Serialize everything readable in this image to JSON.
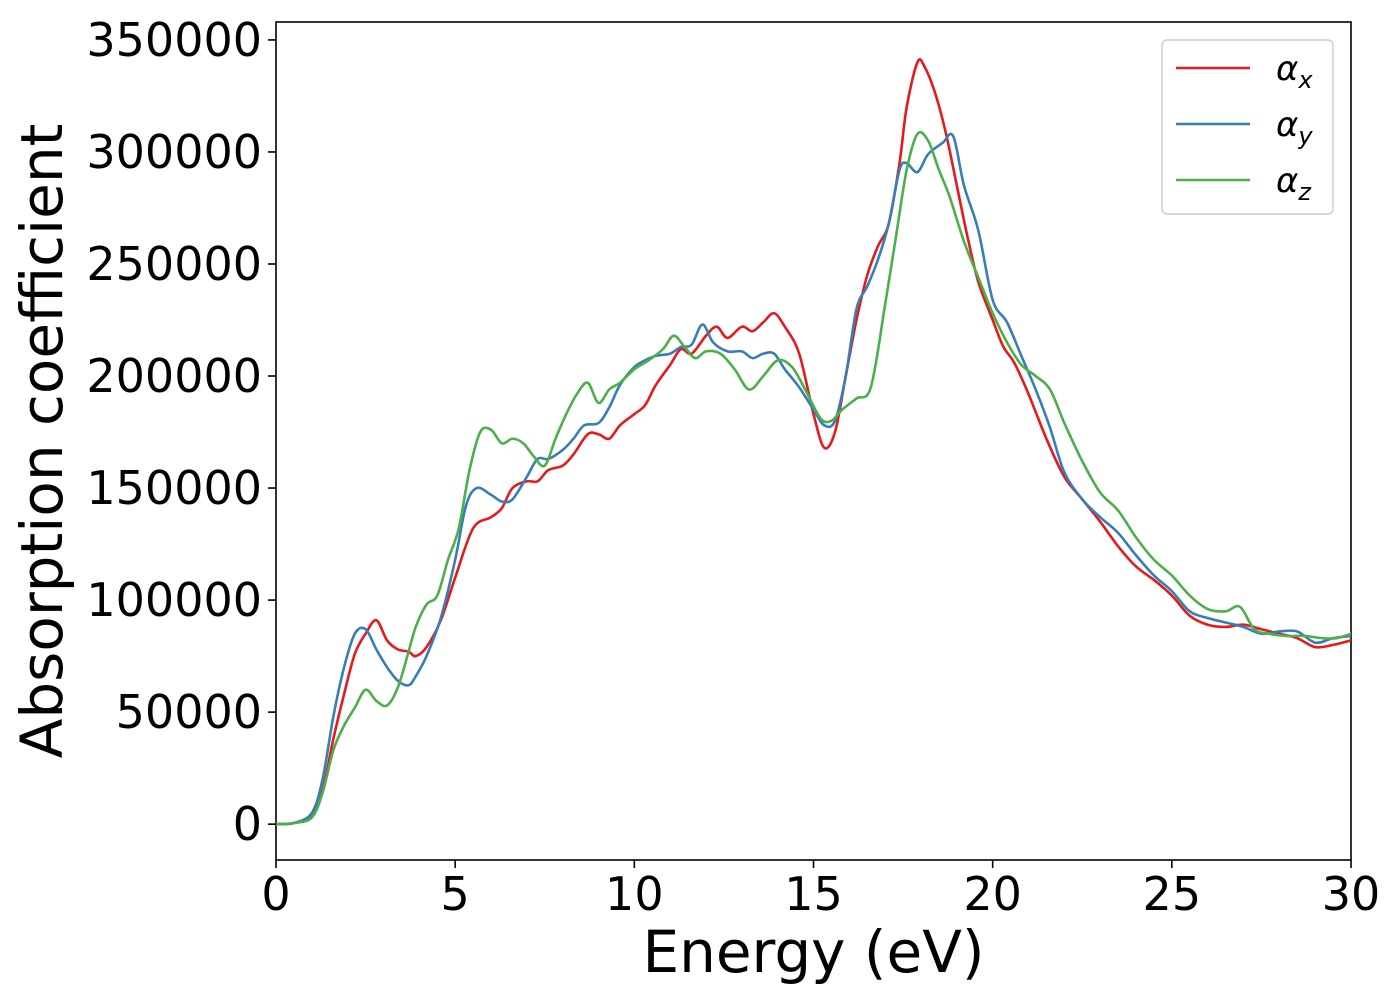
{
  "chart_data": {
    "type": "line",
    "xlabel": "Energy (eV)",
    "ylabel": "Absorption coefficient",
    "xlim": [
      0,
      30
    ],
    "ylim": [
      -16000,
      358000
    ],
    "xticks": [
      0,
      5,
      10,
      15,
      20,
      25,
      30
    ],
    "yticks": [
      0,
      50000,
      100000,
      150000,
      200000,
      250000,
      300000,
      350000
    ],
    "grid": false,
    "legend_position": "top-right",
    "series": [
      {
        "name": "α_x",
        "legend_base": "α",
        "legend_sub": "x",
        "color": "#e41a1c",
        "x": [
          0,
          0.5,
          1.0,
          1.3,
          1.6,
          1.9,
          2.2,
          2.5,
          2.8,
          3.1,
          3.4,
          3.7,
          3.9,
          4.2,
          4.6,
          5.0,
          5.5,
          6.0,
          6.3,
          6.6,
          7.0,
          7.3,
          7.6,
          8.0,
          8.3,
          8.7,
          9.0,
          9.3,
          9.6,
          10.0,
          10.3,
          10.6,
          11.0,
          11.3,
          11.6,
          12.0,
          12.3,
          12.6,
          13.0,
          13.3,
          13.6,
          13.9,
          14.2,
          14.6,
          15.0,
          15.3,
          15.6,
          15.9,
          16.2,
          16.5,
          16.8,
          17.1,
          17.4,
          17.6,
          17.9,
          18.1,
          18.4,
          18.7,
          19.0,
          19.3,
          19.6,
          20.0,
          20.3,
          20.6,
          21.0,
          21.5,
          22.0,
          22.5,
          23.0,
          23.5,
          24.0,
          24.5,
          25.0,
          25.5,
          26.0,
          26.5,
          27.0,
          27.5,
          28.0,
          28.5,
          29.0,
          29.5,
          30.0
        ],
        "y": [
          0,
          500,
          4000,
          15000,
          38000,
          58000,
          76000,
          85000,
          91000,
          82000,
          78000,
          77000,
          75000,
          79000,
          91000,
          110000,
          132000,
          137000,
          141000,
          150000,
          153000,
          153000,
          158000,
          160000,
          165000,
          174000,
          174000,
          172000,
          178000,
          183000,
          187000,
          196000,
          205000,
          212000,
          210000,
          218000,
          222000,
          217000,
          222000,
          220000,
          224000,
          228000,
          222000,
          210000,
          183000,
          168000,
          175000,
          200000,
          225000,
          245000,
          258000,
          268000,
          295000,
          320000,
          340000,
          338000,
          326000,
          308000,
          285000,
          262000,
          242000,
          225000,
          213000,
          206000,
          192000,
          172000,
          155000,
          145000,
          135000,
          124000,
          115000,
          109000,
          102000,
          93000,
          89000,
          88000,
          89000,
          87000,
          85000,
          83000,
          79000,
          80000,
          82000
        ]
      },
      {
        "name": "α_y",
        "legend_base": "α",
        "legend_sub": "y",
        "color": "#377eb8",
        "x": [
          0,
          0.5,
          1.0,
          1.3,
          1.6,
          1.9,
          2.2,
          2.5,
          2.8,
          3.1,
          3.4,
          3.7,
          3.9,
          4.2,
          4.6,
          5.0,
          5.3,
          5.6,
          6.0,
          6.3,
          6.6,
          7.0,
          7.3,
          7.6,
          8.0,
          8.3,
          8.6,
          9.0,
          9.3,
          9.6,
          10.0,
          10.3,
          10.6,
          11.0,
          11.3,
          11.6,
          11.9,
          12.2,
          12.6,
          13.0,
          13.3,
          13.6,
          13.9,
          14.2,
          14.6,
          15.0,
          15.3,
          15.6,
          15.9,
          16.2,
          16.5,
          16.8,
          17.1,
          17.4,
          17.6,
          17.9,
          18.2,
          18.6,
          18.9,
          19.2,
          19.6,
          20.0,
          20.4,
          20.8,
          21.2,
          21.6,
          22.0,
          22.5,
          23.0,
          23.5,
          24.0,
          24.5,
          25.0,
          25.5,
          26.0,
          26.5,
          27.0,
          27.5,
          28.0,
          28.5,
          29.0,
          29.5,
          30.0
        ],
        "y": [
          0,
          500,
          5000,
          20000,
          48000,
          70000,
          85000,
          87000,
          78000,
          70000,
          64000,
          62000,
          66000,
          75000,
          92000,
          118000,
          142000,
          150000,
          147000,
          144000,
          145000,
          155000,
          163000,
          163000,
          167000,
          172000,
          178000,
          179000,
          186000,
          196000,
          204000,
          207000,
          209000,
          210000,
          213000,
          214000,
          223000,
          215000,
          211000,
          211000,
          208000,
          210000,
          210000,
          203000,
          195000,
          185000,
          178000,
          180000,
          200000,
          230000,
          240000,
          252000,
          268000,
          292000,
          295000,
          291000,
          299000,
          304000,
          307000,
          285000,
          265000,
          234000,
          224000,
          209000,
          194000,
          177000,
          157000,
          145000,
          137000,
          130000,
          120000,
          111000,
          104000,
          95000,
          92000,
          90000,
          88000,
          85000,
          86000,
          86000,
          81000,
          83000,
          84000
        ]
      },
      {
        "name": "α_z",
        "legend_base": "α",
        "legend_sub": "z",
        "color": "#4daf4a",
        "x": [
          0,
          0.5,
          1.0,
          1.3,
          1.6,
          1.9,
          2.2,
          2.5,
          2.8,
          3.1,
          3.4,
          3.7,
          3.9,
          4.2,
          4.5,
          4.8,
          5.1,
          5.4,
          5.7,
          6.0,
          6.3,
          6.6,
          6.9,
          7.2,
          7.5,
          7.8,
          8.1,
          8.4,
          8.7,
          9.0,
          9.3,
          9.6,
          10.0,
          10.4,
          10.8,
          11.1,
          11.4,
          11.7,
          12.0,
          12.4,
          12.8,
          13.2,
          13.6,
          14.0,
          14.4,
          14.8,
          15.2,
          15.5,
          15.8,
          16.2,
          16.6,
          17.0,
          17.3,
          17.6,
          17.9,
          18.2,
          18.5,
          18.8,
          19.2,
          19.6,
          20.0,
          20.4,
          20.8,
          21.2,
          21.6,
          22.0,
          22.5,
          23.0,
          23.5,
          24.0,
          24.5,
          25.0,
          25.5,
          26.0,
          26.5,
          26.9,
          27.3,
          27.7,
          28.2,
          28.7,
          29.2,
          29.6,
          30.0
        ],
        "y": [
          0,
          500,
          3000,
          14000,
          33000,
          44000,
          52000,
          60000,
          55000,
          53000,
          61000,
          77000,
          88000,
          98000,
          102000,
          118000,
          132000,
          158000,
          175000,
          176000,
          170000,
          172000,
          170000,
          164000,
          160000,
          172000,
          183000,
          192000,
          197000,
          188000,
          194000,
          197000,
          203000,
          207000,
          212000,
          218000,
          213000,
          208000,
          211000,
          210000,
          203000,
          194000,
          200000,
          207000,
          204000,
          193000,
          181000,
          180000,
          185000,
          190000,
          195000,
          232000,
          262000,
          292000,
          308000,
          305000,
          292000,
          280000,
          260000,
          244000,
          228000,
          215000,
          205000,
          200000,
          194000,
          179000,
          162000,
          148000,
          140000,
          128000,
          118000,
          111000,
          102000,
          96000,
          95000,
          97000,
          87000,
          85000,
          84000,
          84000,
          83000,
          83000,
          85000
        ]
      }
    ]
  }
}
